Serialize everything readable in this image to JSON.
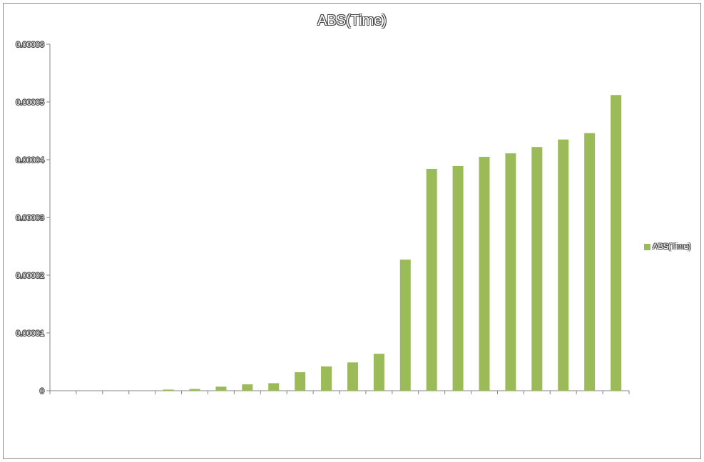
{
  "chart_data": {
    "type": "bar",
    "title": "ABS(Time)",
    "xlabel": "",
    "ylabel": "",
    "ylim": [
      0,
      6e-05
    ],
    "y_ticks": [
      "0",
      "0.00001",
      "0.00002",
      "0.00003",
      "0.00004",
      "0.00005",
      "0.00006"
    ],
    "y_tick_values": [
      0,
      1e-05,
      2e-05,
      3e-05,
      4e-05,
      5e-05,
      6e-05
    ],
    "grid": false,
    "legend_position": "right",
    "series": [
      {
        "name": "ABS(Time)",
        "color": "#9bbb59",
        "values": [
          0,
          0,
          0,
          2e-07,
          3e-07,
          7e-07,
          1.1e-06,
          1.3e-06,
          3.2e-06,
          4.2e-06,
          4.9e-06,
          6.4e-06,
          2.27e-05,
          3.84e-05,
          3.89e-05,
          4.05e-05,
          4.11e-05,
          4.22e-05,
          4.35e-05,
          4.46e-05,
          5.12e-05
        ]
      }
    ]
  }
}
